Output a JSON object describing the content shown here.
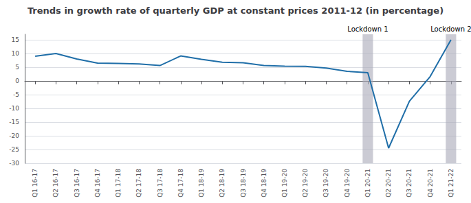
{
  "chart_data": {
    "type": "line",
    "title": "Trends in growth rate of quarterly GDP at constant prices 2011-12 (in percentage)",
    "categories": [
      "Q1 16-17",
      "Q2 16-17",
      "Q3 16-17",
      "Q4 16-17",
      "Q1 17-18",
      "Q2 17-18",
      "Q3 17-18",
      "Q4 17-18",
      "Q1 18-19",
      "Q2 18-19",
      "Q3 18-19",
      "Q4 18-19",
      "Q1 19-20",
      "Q2 19-20",
      "Q3 19-20",
      "Q4 19-20",
      "Q1 20-21",
      "Q2 20-21",
      "Q3 20-21",
      "Q4 20-21",
      "Q1 21-22"
    ],
    "values": [
      9.0,
      10.0,
      8.0,
      6.5,
      6.4,
      6.2,
      5.6,
      9.1,
      7.9,
      6.8,
      6.6,
      5.6,
      5.4,
      5.3,
      4.7,
      3.5,
      3.0,
      -24.5,
      -7.4,
      1.6,
      15.0
    ],
    "color": "#1F6EA8",
    "ylim": [
      -30,
      17
    ],
    "yticks": [
      15,
      10,
      5,
      0,
      -5,
      -10,
      -15,
      -20,
      -25,
      -30
    ],
    "grid": true,
    "annotations": [
      {
        "text": "Lockdown 1",
        "x": "Q1 20-21",
        "color": "#a8a8b8"
      },
      {
        "text": "Lockdown 2",
        "x": "Q1 21-22",
        "color": "#a8a8b8"
      }
    ]
  }
}
